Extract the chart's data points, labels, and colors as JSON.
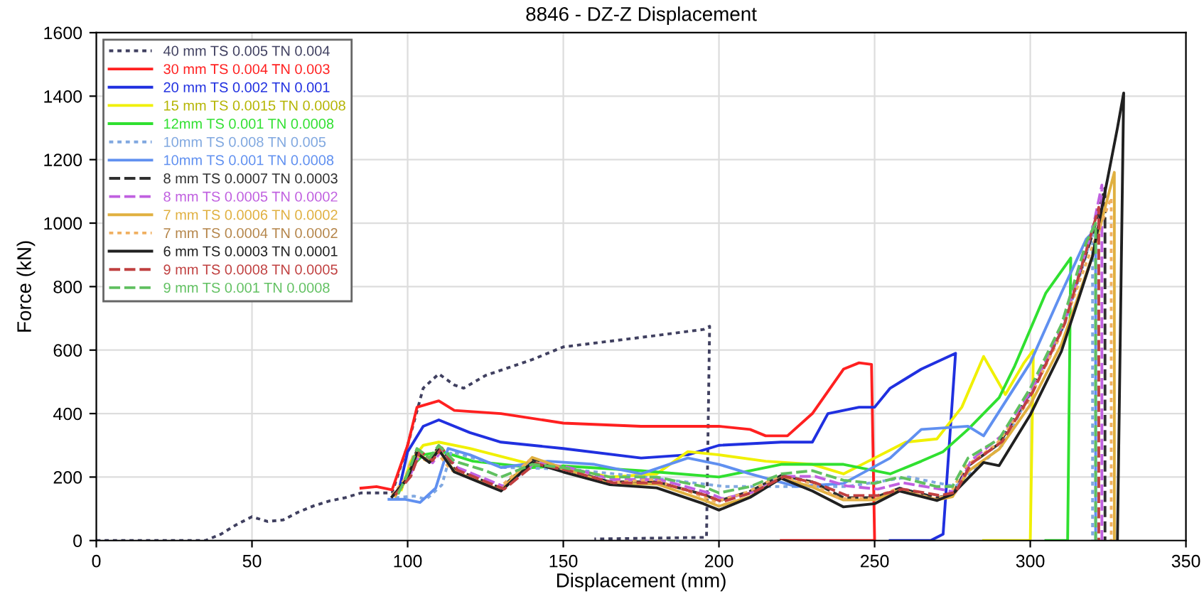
{
  "chart_data": {
    "type": "line",
    "title": "8846 - DZ-Z Displacement",
    "xlabel": "Displacement (mm)",
    "ylabel": "Force (kN)",
    "xlim": [
      0,
      350
    ],
    "ylim": [
      0,
      1600
    ],
    "xticks": [
      0,
      50,
      100,
      150,
      200,
      250,
      300,
      350
    ],
    "yticks": [
      0,
      200,
      400,
      600,
      800,
      1000,
      1200,
      1400,
      1600
    ],
    "grid": true,
    "legend": "top left",
    "series": [
      {
        "name": "40 mm TS 0.005 TN 0.004",
        "color": "#404060",
        "line_style": "dotted",
        "x": [
          0,
          35,
          40,
          45,
          50,
          55,
          60,
          65,
          70,
          75,
          80,
          85,
          90,
          95,
          100,
          105,
          110,
          115,
          118,
          125,
          140,
          150,
          175,
          195,
          197,
          196,
          160
        ],
        "values": [
          0,
          0,
          20,
          50,
          75,
          60,
          65,
          90,
          110,
          125,
          135,
          150,
          150,
          150,
          300,
          480,
          525,
          490,
          480,
          520,
          570,
          610,
          640,
          665,
          675,
          10,
          5
        ]
      },
      {
        "name": "30 mm TS 0.004 TN 0.003",
        "color": "#ff2020",
        "x": [
          85,
          90,
          95,
          100,
          103,
          110,
          115,
          130,
          150,
          175,
          200,
          210,
          215,
          222,
          230,
          240,
          245,
          249,
          250,
          220
        ],
        "values": [
          165,
          170,
          160,
          300,
          420,
          440,
          410,
          400,
          370,
          360,
          360,
          350,
          330,
          330,
          400,
          540,
          560,
          555,
          0,
          0
        ]
      },
      {
        "name": "20 mm TS 0.002 TN 0.001",
        "color": "#2030e0",
        "x": [
          97,
          100,
          105,
          110,
          120,
          130,
          150,
          175,
          190,
          200,
          220,
          230,
          235,
          245,
          250,
          255,
          265,
          276,
          272,
          268,
          255
        ],
        "values": [
          150,
          280,
          360,
          380,
          340,
          310,
          290,
          260,
          270,
          300,
          310,
          310,
          400,
          420,
          420,
          480,
          540,
          590,
          20,
          0,
          0
        ]
      },
      {
        "name": "15 mm TS 0.0015 TN 0.0008",
        "color": "#f0f000",
        "x": [
          98,
          101,
          105,
          110,
          120,
          140,
          150,
          165,
          180,
          190,
          200,
          215,
          230,
          240,
          250,
          260,
          270,
          278,
          285,
          292,
          298,
          301,
          300,
          285
        ],
        "values": [
          160,
          250,
          300,
          310,
          290,
          240,
          230,
          200,
          210,
          280,
          270,
          250,
          240,
          210,
          260,
          310,
          320,
          420,
          580,
          460,
          560,
          600,
          0,
          0
        ]
      },
      {
        "name": "12mm TS 0.001 TN 0.0008",
        "color": "#30e030",
        "x": [
          97,
          101,
          105,
          111,
          121,
          140,
          150,
          175,
          200,
          220,
          240,
          255,
          265,
          272,
          280,
          290,
          295,
          305,
          313,
          312,
          305
        ],
        "values": [
          150,
          230,
          270,
          280,
          250,
          230,
          235,
          220,
          200,
          240,
          240,
          210,
          250,
          280,
          350,
          450,
          550,
          780,
          890,
          0,
          0
        ]
      },
      {
        "name": "10mm TS 0.008 TN 0.005",
        "color": "#80a8e0",
        "line_style": "dotted",
        "x": [
          96,
          102,
          106,
          111,
          114,
          121,
          131,
          152,
          176,
          202,
          221,
          241,
          261,
          276,
          291,
          301,
          311,
          318,
          320,
          320
        ],
        "values": [
          135,
          140,
          130,
          175,
          280,
          260,
          230,
          225,
          200,
          170,
          170,
          170,
          200,
          170,
          300,
          480,
          680,
          900,
          990,
          0
        ]
      },
      {
        "name": "10mm TS 0.001 TN 0.0008",
        "color": "#6090f0",
        "x": [
          94,
          99,
          104,
          109,
          113,
          120,
          130,
          145,
          160,
          175,
          190,
          200,
          210,
          225,
          240,
          255,
          265,
          280,
          285,
          300,
          310,
          318,
          321,
          321
        ],
        "values": [
          130,
          130,
          120,
          165,
          290,
          270,
          230,
          250,
          240,
          210,
          260,
          240,
          210,
          170,
          180,
          260,
          350,
          360,
          330,
          560,
          780,
          950,
          980,
          0
        ]
      },
      {
        "name": "8 mm TS 0.0007 TN 0.0003",
        "color": "#303030",
        "line_style": "dashed",
        "x": [
          96,
          100,
          103,
          107,
          110,
          115,
          125,
          130,
          140,
          150,
          165,
          180,
          195,
          200,
          210,
          220,
          230,
          240,
          250,
          258,
          270,
          275,
          280,
          290,
          300,
          310,
          320,
          324,
          324
        ],
        "values": [
          145,
          205,
          285,
          255,
          295,
          225,
          185,
          165,
          255,
          225,
          185,
          185,
          145,
          125,
          155,
          205,
          185,
          135,
          135,
          165,
          135,
          145,
          235,
          305,
          465,
          665,
          965,
          1110,
          0
        ]
      },
      {
        "name": "8 mm TS 0.0005 TN 0.0002",
        "color": "#c060e0",
        "line_style": "dashed",
        "x": [
          101,
          104,
          108,
          111,
          116,
          126,
          131,
          141,
          151,
          166,
          181,
          196,
          201,
          211,
          221,
          231,
          241,
          251,
          259,
          271,
          276,
          281,
          291,
          301,
          311,
          320,
          323,
          323
        ],
        "values": [
          210,
          275,
          245,
          285,
          230,
          190,
          170,
          245,
          232,
          192,
          192,
          152,
          132,
          152,
          202,
          202,
          172,
          162,
          182,
          162,
          152,
          252,
          332,
          482,
          692,
          980,
          1120,
          0
        ]
      },
      {
        "name": "7 mm TS 0.0006 TN 0.0002",
        "color": "#e0b040",
        "x": [
          96,
          100,
          103,
          107,
          110,
          115,
          125,
          130,
          140,
          150,
          165,
          180,
          195,
          200,
          210,
          220,
          230,
          240,
          250,
          258,
          270,
          275,
          280,
          290,
          300,
          310,
          320,
          327,
          327
        ],
        "values": [
          140,
          198,
          278,
          248,
          288,
          218,
          178,
          158,
          262,
          228,
          178,
          178,
          128,
          108,
          138,
          198,
          168,
          128,
          128,
          158,
          128,
          138,
          218,
          288,
          428,
          618,
          898,
          1160,
          0
        ]
      },
      {
        "name": "7 mm TS 0.0004 TN 0.0002",
        "color": "#f0b060",
        "line_style": "dotted",
        "x": [
          95,
          99,
          102,
          106,
          109,
          114,
          124,
          129,
          139,
          149,
          164,
          179,
          194,
          199,
          209,
          219,
          229,
          239,
          249,
          257,
          269,
          274,
          279,
          289,
          299,
          309,
          319,
          326,
          326
        ],
        "values": [
          142,
          192,
          272,
          252,
          282,
          222,
          182,
          162,
          252,
          222,
          182,
          192,
          142,
          122,
          152,
          202,
          182,
          132,
          132,
          162,
          132,
          142,
          232,
          302,
          432,
          632,
          902,
          1080,
          0
        ]
      },
      {
        "name": "6 mm TS 0.0003 TN 0.0001",
        "color": "#202020",
        "x": [
          95,
          100,
          103,
          107,
          110,
          115,
          125,
          130,
          140,
          150,
          165,
          180,
          195,
          200,
          210,
          220,
          230,
          240,
          250,
          258,
          270,
          275,
          285,
          290,
          300,
          310,
          320,
          328,
          330,
          328
        ],
        "values": [
          138,
          196,
          276,
          246,
          286,
          216,
          176,
          156,
          246,
          216,
          176,
          166,
          116,
          96,
          136,
          196,
          156,
          106,
          116,
          156,
          126,
          146,
          246,
          236,
          396,
          596,
          896,
          1300,
          1410,
          0
        ]
      },
      {
        "name": "9 mm TS 0.0008 TN 0.0005",
        "color": "#c04040",
        "line_style": "dashed",
        "x": [
          96,
          101,
          104,
          108,
          111,
          116,
          126,
          131,
          141,
          151,
          166,
          181,
          196,
          201,
          211,
          221,
          231,
          241,
          251,
          259,
          271,
          276,
          281,
          291,
          301,
          311,
          320,
          322,
          322
        ],
        "values": [
          144,
          202,
          282,
          252,
          292,
          222,
          182,
          162,
          242,
          222,
          182,
          182,
          142,
          122,
          152,
          202,
          182,
          142,
          142,
          162,
          142,
          152,
          242,
          312,
          472,
          682,
          980,
          1050,
          0
        ]
      },
      {
        "name": "9 mm TS 0.001 TN 0.0008",
        "color": "#60c060",
        "line_style": "dashed",
        "x": [
          97,
          100,
          103,
          107,
          110,
          115,
          125,
          130,
          140,
          150,
          165,
          180,
          195,
          200,
          210,
          220,
          230,
          240,
          250,
          258,
          270,
          275,
          280,
          290,
          300,
          310,
          318,
          321,
          321
        ],
        "values": [
          148,
          210,
          290,
          260,
          300,
          250,
          220,
          200,
          240,
          230,
          200,
          200,
          170,
          150,
          170,
          210,
          220,
          190,
          180,
          200,
          170,
          170,
          260,
          320,
          480,
          680,
          940,
          1000,
          0
        ]
      }
    ]
  }
}
